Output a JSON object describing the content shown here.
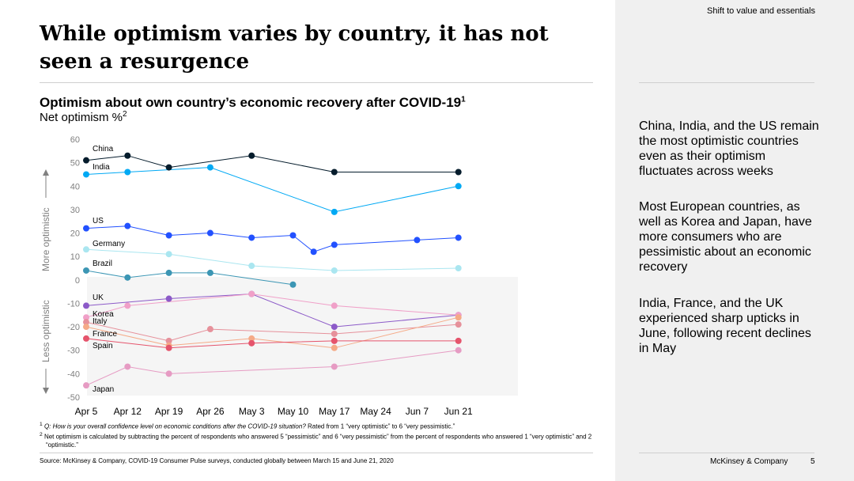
{
  "header": {
    "section": "Shift to value and essentials",
    "title": "While optimism varies by country, it has not seen a resurgence"
  },
  "chart_header": {
    "title": "Optimism about own country’s economic recovery after COVID-19",
    "title_sup": "1",
    "subtitle": "Net optimism %",
    "subtitle_sup": "2"
  },
  "axis_side_labels": {
    "upper": "More optimistic",
    "lower": "Less optimistic"
  },
  "insights": [
    "China, India, and the US remain the most optimistic countries even as their optimism fluctuates across weeks",
    "Most European countries, as well as Korea and Japan, have more consumers who are pessimistic about an economic recovery",
    "India, France, and the UK experienced sharp upticks in June, following recent declines in May"
  ],
  "footnotes": {
    "note1_num": "1",
    "note1_q": "Q: How is your overall confidence level on economic conditions after the COVID-19 situation?",
    "note1_rest": " Rated from 1 “very optimistic” to 6 “very pessimistic.”",
    "note2_num": "2",
    "note2_text": "Net optimism is calculated by subtracting the percent of respondents who answered  5 “pessimistic” and 6 “very pessimistic” from the percent of respondents who answered 1 “very optimistic” and 2 “optimistic.”"
  },
  "source": "Source: McKinsey & Company, COVID-19 Consumer Pulse surveys, conducted globally between March 15 and June 21, 2020",
  "footer": {
    "brand": "McKinsey & Company",
    "page": "5"
  },
  "chart_data": {
    "type": "line",
    "title": "Optimism about own country’s economic recovery after COVID-19",
    "ylabel": "Net optimism %",
    "ylim": [
      -50,
      60
    ],
    "yticks": [
      60,
      50,
      40,
      30,
      20,
      10,
      0,
      -10,
      -20,
      -30,
      -40,
      -50
    ],
    "categories": [
      "Apr 5",
      "Apr 12",
      "Apr 19",
      "Apr 26",
      "May 3",
      "May 10",
      "May 17",
      "May 24",
      "Jun 7",
      "Jun 21"
    ],
    "series": [
      {
        "name": "China",
        "color": "#051c2c",
        "points": [
          [
            0,
            51
          ],
          [
            1,
            53
          ],
          [
            2,
            48
          ],
          [
            4,
            53
          ],
          [
            6,
            46
          ],
          [
            9,
            46
          ]
        ]
      },
      {
        "name": "India",
        "color": "#00a9f4",
        "points": [
          [
            0,
            45
          ],
          [
            1,
            46
          ],
          [
            3,
            48
          ],
          [
            6,
            29
          ],
          [
            9,
            40
          ]
        ]
      },
      {
        "name": "US",
        "color": "#2251ff",
        "points": [
          [
            0,
            22
          ],
          [
            1,
            23
          ],
          [
            2,
            19
          ],
          [
            3,
            20
          ],
          [
            4,
            18
          ],
          [
            5,
            19
          ],
          [
            5.5,
            12
          ],
          [
            6,
            15
          ],
          [
            8,
            17
          ],
          [
            9,
            18
          ]
        ]
      },
      {
        "name": "Germany",
        "color": "#aae6f0",
        "points": [
          [
            0,
            13
          ],
          [
            2,
            11
          ],
          [
            4,
            6
          ],
          [
            6,
            4
          ],
          [
            9,
            5
          ]
        ]
      },
      {
        "name": "Brazil",
        "color": "#3c96b4",
        "points": [
          [
            0,
            4
          ],
          [
            1,
            1
          ],
          [
            2,
            3
          ],
          [
            3,
            3
          ],
          [
            5,
            -2
          ]
        ]
      },
      {
        "name": "UK",
        "color": "#8c5ac8",
        "points": [
          [
            0,
            -11
          ],
          [
            2,
            -8
          ],
          [
            4,
            -6
          ],
          [
            6,
            -20
          ],
          [
            9,
            -15
          ]
        ]
      },
      {
        "name": "Korea",
        "color": "#f0a0c8",
        "points": [
          [
            0,
            -16
          ],
          [
            1,
            -11
          ],
          [
            4,
            -6
          ],
          [
            6,
            -11
          ],
          [
            9,
            -15
          ]
        ]
      },
      {
        "name": "Italy",
        "color": "#e6919b",
        "points": [
          [
            0,
            -18
          ],
          [
            2,
            -26
          ],
          [
            3,
            -21
          ],
          [
            6,
            -23
          ],
          [
            9,
            -19
          ]
        ]
      },
      {
        "name": "France",
        "color": "#f5aa87",
        "points": [
          [
            0,
            -20
          ],
          [
            2,
            -28
          ],
          [
            4,
            -25
          ],
          [
            6,
            -29
          ],
          [
            9,
            -16
          ]
        ]
      },
      {
        "name": "Spain",
        "color": "#e5546c",
        "points": [
          [
            0,
            -25
          ],
          [
            2,
            -29
          ],
          [
            4,
            -27
          ],
          [
            6,
            -26
          ],
          [
            9,
            -26
          ]
        ]
      },
      {
        "name": "Japan",
        "color": "#e69bc3",
        "points": [
          [
            0,
            -45
          ],
          [
            1,
            -37
          ],
          [
            2,
            -40
          ],
          [
            6,
            -37
          ],
          [
            9,
            -30
          ]
        ]
      }
    ]
  }
}
